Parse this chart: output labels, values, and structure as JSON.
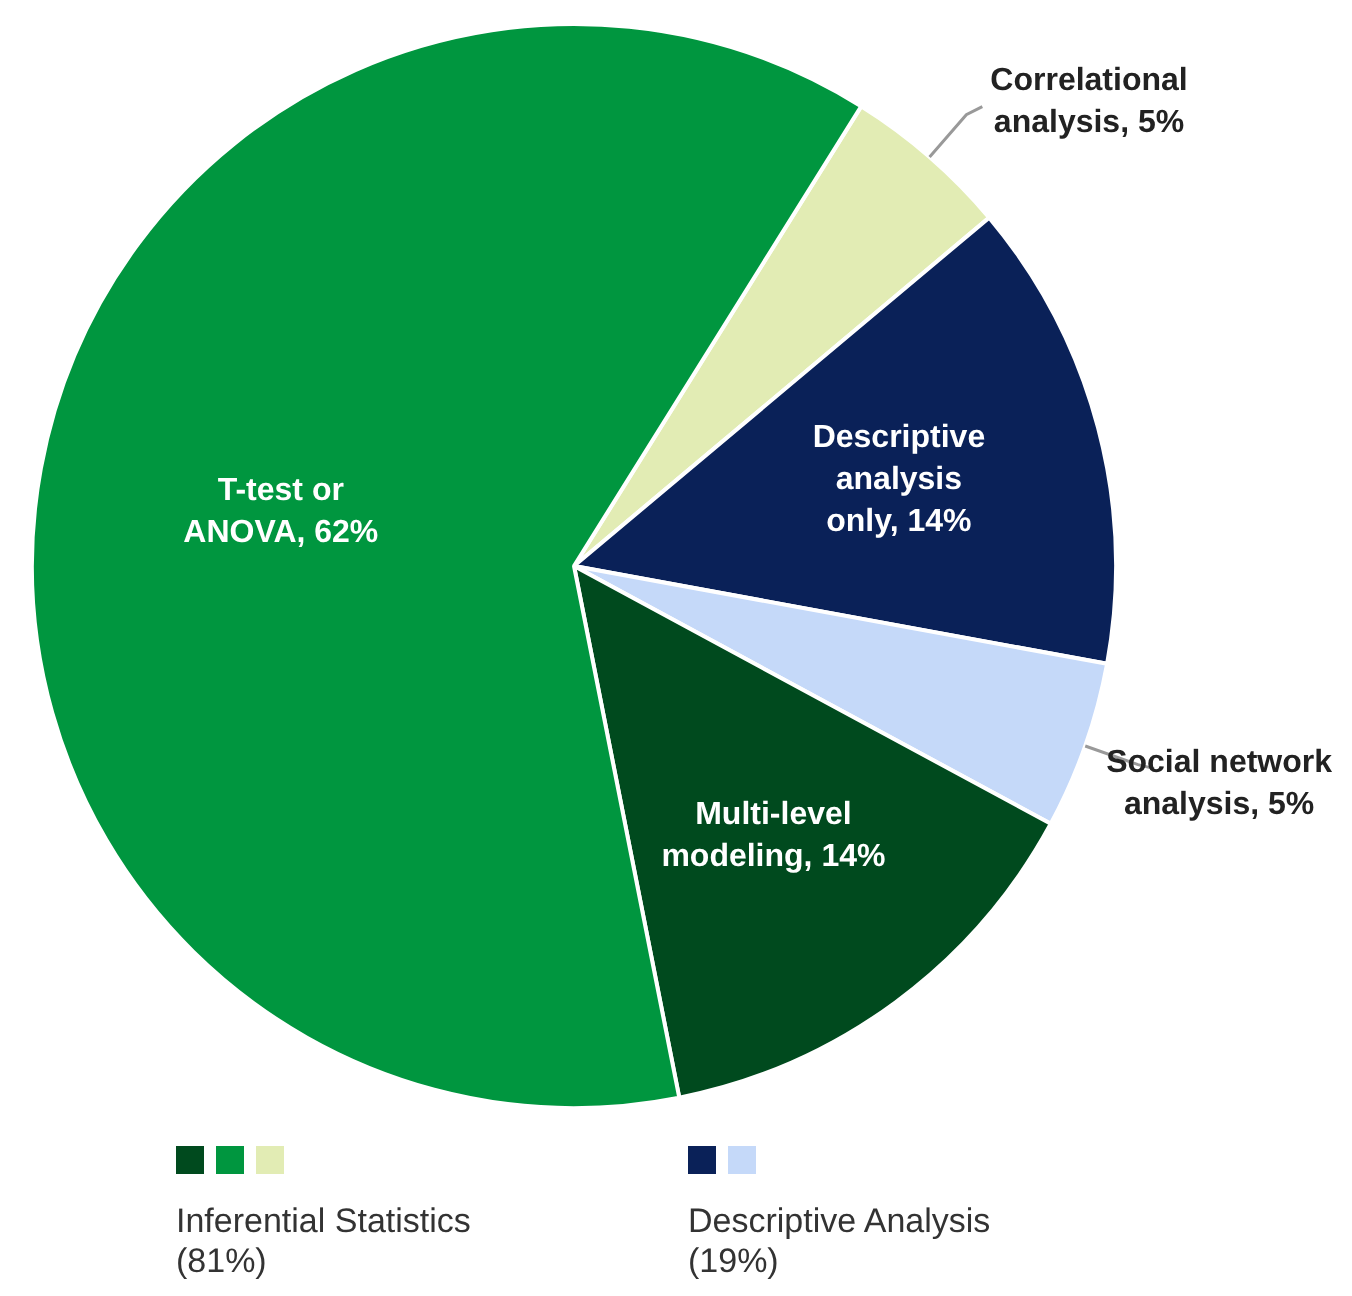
{
  "chart_data": {
    "type": "pie",
    "categories": [
      "Correlational analysis",
      "Descriptive analysis only",
      "Social network analysis",
      "Multi-level modeling",
      "T-test or ANOVA"
    ],
    "value_labels": [
      "5%",
      "14%",
      "5%",
      "14%",
      "62%"
    ],
    "values": [
      5,
      14,
      5,
      14,
      62
    ],
    "colors": [
      "#e2ecb4",
      "#0a2158",
      "#c5d9f9",
      "#004a1e",
      "#00963f"
    ],
    "annotations": [
      "Inferential Statistics\n(81%)",
      "Descriptive Analysis\n(19%)"
    ]
  }
}
